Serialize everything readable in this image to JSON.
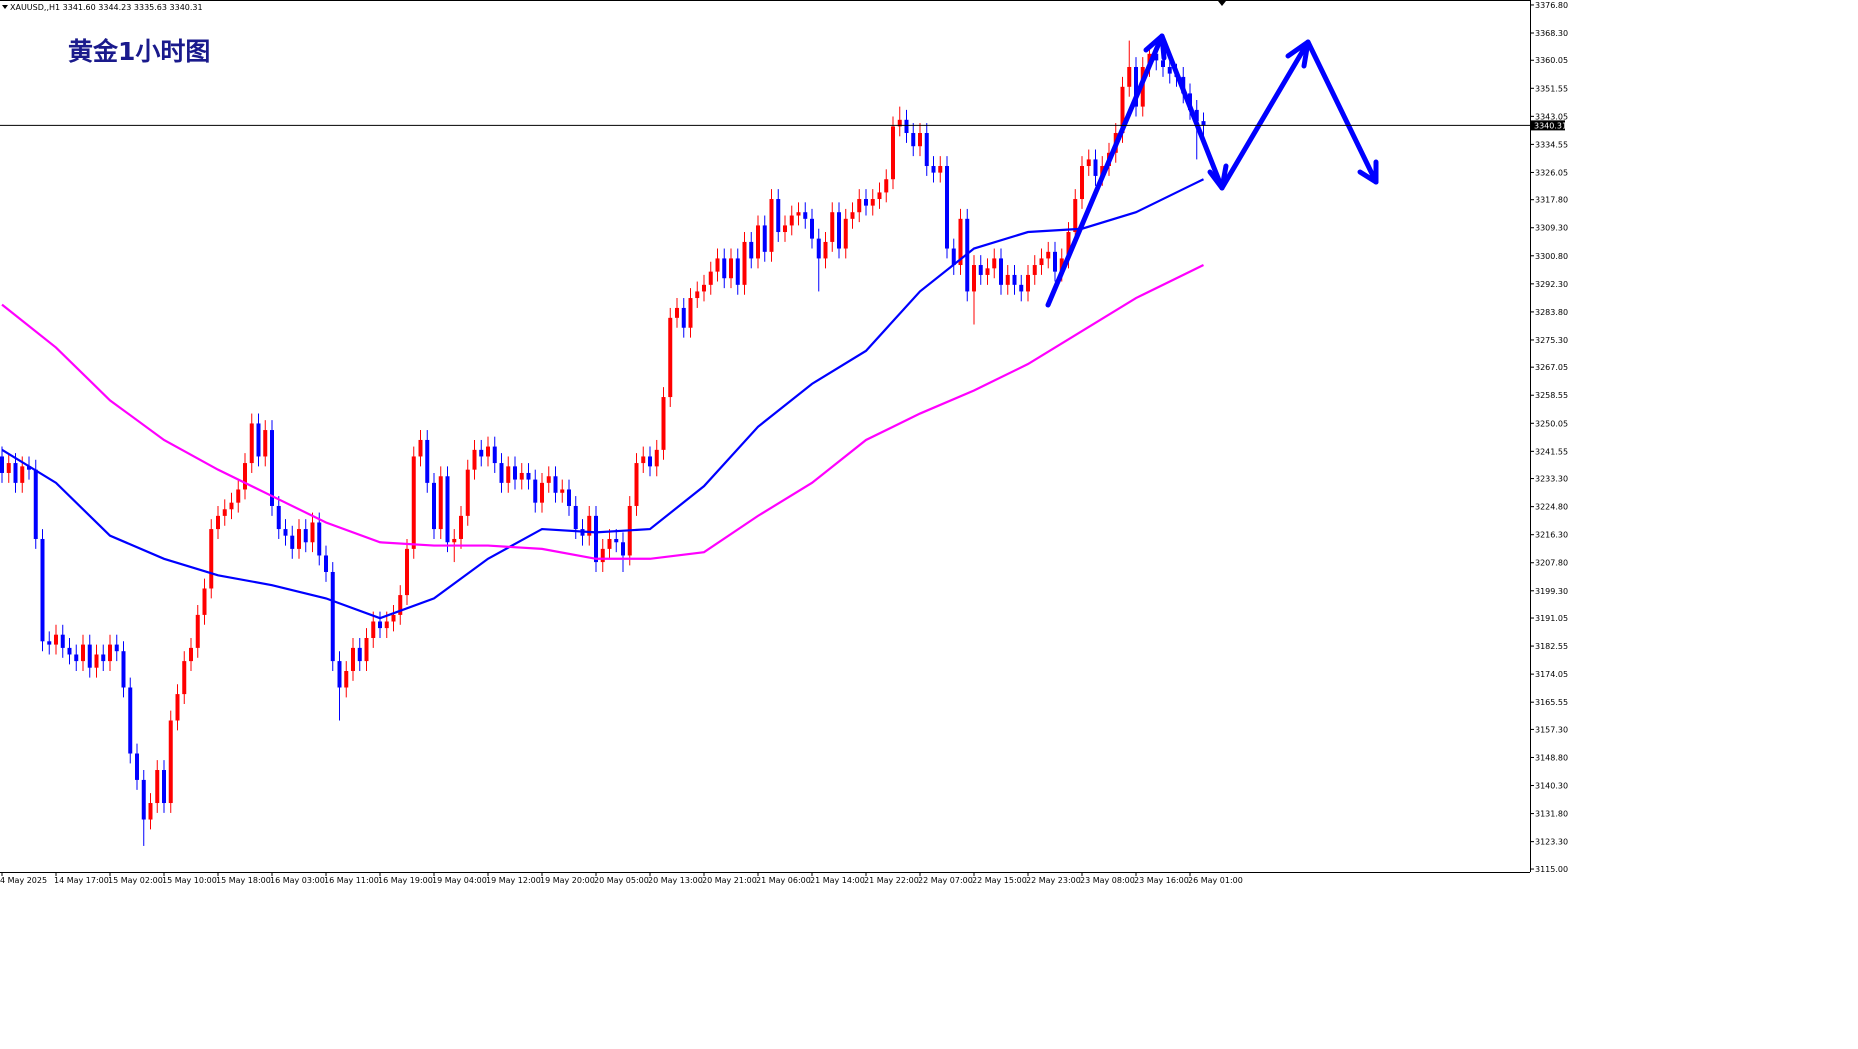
{
  "chart_data": {
    "type": "candlestick",
    "title": "黄金1小时图",
    "symbol_info": "XAUUSD,,H1  3341.60 3344.23 3335.63 3340.31",
    "up_color": "#ff0000",
    "down_color": "#0000ff",
    "ylim": [
      3114.1,
      3378.3
    ],
    "yticks": [
      {
        "value": 3376.8,
        "label": "3376.80"
      },
      {
        "value": 3368.3,
        "label": "3368.30"
      },
      {
        "value": 3360.05,
        "label": "3360.05"
      },
      {
        "value": 3351.55,
        "label": "3351.55"
      },
      {
        "value": 3343.05,
        "label": "3343.05"
      },
      {
        "value": 3334.55,
        "label": "3334.55"
      },
      {
        "value": 3326.05,
        "label": "3326.05"
      },
      {
        "value": 3317.8,
        "label": "3317.80"
      },
      {
        "value": 3309.3,
        "label": "3309.30"
      },
      {
        "value": 3300.8,
        "label": "3300.80"
      },
      {
        "value": 3292.3,
        "label": "3292.30"
      },
      {
        "value": 3283.8,
        "label": "3283.80"
      },
      {
        "value": 3275.3,
        "label": "3275.30"
      },
      {
        "value": 3267.05,
        "label": "3267.05"
      },
      {
        "value": 3258.55,
        "label": "3258.55"
      },
      {
        "value": 3250.05,
        "label": "3250.05"
      },
      {
        "value": 3241.55,
        "label": "3241.55"
      },
      {
        "value": 3233.3,
        "label": "3233.30"
      },
      {
        "value": 3224.8,
        "label": "3224.80"
      },
      {
        "value": 3216.3,
        "label": "3216.30"
      },
      {
        "value": 3207.8,
        "label": "3207.80"
      },
      {
        "value": 3199.3,
        "label": "3199.30"
      },
      {
        "value": 3191.05,
        "label": "3191.05"
      },
      {
        "value": 3182.55,
        "label": "3182.55"
      },
      {
        "value": 3174.05,
        "label": "3174.05"
      },
      {
        "value": 3165.55,
        "label": "3165.55"
      },
      {
        "value": 3157.3,
        "label": "3157.30"
      },
      {
        "value": 3148.8,
        "label": "3148.80"
      },
      {
        "value": 3140.3,
        "label": "3140.30"
      },
      {
        "value": 3131.8,
        "label": "3131.80"
      },
      {
        "value": 3123.3,
        "label": "3123.30"
      },
      {
        "value": 3115,
        "label": "3115.00"
      }
    ],
    "categories": [
      "4 May 2025",
      "14 May 17:00",
      "15 May 02:00",
      "15 May 10:00",
      "15 May 18:00",
      "16 May 03:00",
      "16 May 11:00",
      "16 May 19:00",
      "19 May 04:00",
      "19 May 12:00",
      "19 May 20:00",
      "20 May 05:00",
      "20 May 13:00",
      "20 May 21:00",
      "21 May 06:00",
      "21 May 14:00",
      "21 May 22:00",
      "22 May 07:00",
      "22 May 15:00",
      "22 May 23:00",
      "23 May 08:00",
      "23 May 16:00",
      "26 May 01:00"
    ],
    "candles": [
      [
        3240,
        3243,
        3232,
        3235
      ],
      [
        3235,
        3241,
        3232,
        3238
      ],
      [
        3238,
        3241,
        3229,
        3232
      ],
      [
        3232,
        3240,
        3229,
        3237
      ],
      [
        3237,
        3240,
        3233,
        3236
      ],
      [
        3236,
        3239,
        3212,
        3215
      ],
      [
        3215,
        3218,
        3181,
        3184
      ],
      [
        3184,
        3187,
        3180,
        3183
      ],
      [
        3183,
        3189,
        3180,
        3186
      ],
      [
        3186,
        3189,
        3179,
        3182
      ],
      [
        3182,
        3185,
        3177,
        3180
      ],
      [
        3180,
        3183,
        3175,
        3178
      ],
      [
        3178,
        3186,
        3175,
        3183
      ],
      [
        3183,
        3186,
        3173,
        3176
      ],
      [
        3176,
        3183,
        3173,
        3180
      ],
      [
        3180,
        3183,
        3175,
        3178
      ],
      [
        3178,
        3186,
        3175,
        3183
      ],
      [
        3183,
        3186,
        3178,
        3181
      ],
      [
        3181,
        3184,
        3167,
        3170
      ],
      [
        3170,
        3173,
        3147,
        3150
      ],
      [
        3150,
        3153,
        3139,
        3142
      ],
      [
        3142,
        3145,
        3122,
        3130
      ],
      [
        3130,
        3138,
        3127,
        3135
      ],
      [
        3135,
        3148,
        3132,
        3145
      ],
      [
        3145,
        3148,
        3132,
        3135
      ],
      [
        3135,
        3163,
        3132,
        3160
      ],
      [
        3160,
        3171,
        3157,
        3168
      ],
      [
        3168,
        3181,
        3165,
        3178
      ],
      [
        3178,
        3185,
        3175,
        3182
      ],
      [
        3182,
        3195,
        3179,
        3192
      ],
      [
        3192,
        3203,
        3189,
        3200
      ],
      [
        3200,
        3221,
        3197,
        3218
      ],
      [
        3218,
        3225,
        3215,
        3222
      ],
      [
        3222,
        3227,
        3219,
        3224
      ],
      [
        3224,
        3229,
        3221,
        3226
      ],
      [
        3226,
        3233,
        3223,
        3230
      ],
      [
        3230,
        3241,
        3227,
        3238
      ],
      [
        3238,
        3253,
        3235,
        3250
      ],
      [
        3250,
        3253,
        3237,
        3240
      ],
      [
        3240,
        3251,
        3237,
        3248
      ],
      [
        3248,
        3251,
        3222,
        3225
      ],
      [
        3225,
        3228,
        3215,
        3218
      ],
      [
        3218,
        3221,
        3213,
        3216
      ],
      [
        3216,
        3219,
        3209,
        3212
      ],
      [
        3212,
        3221,
        3209,
        3218
      ],
      [
        3218,
        3221,
        3211,
        3214
      ],
      [
        3214,
        3223,
        3211,
        3220
      ],
      [
        3220,
        3223,
        3207,
        3210
      ],
      [
        3210,
        3213,
        3202,
        3205
      ],
      [
        3205,
        3208,
        3175,
        3178
      ],
      [
        3178,
        3181,
        3160,
        3170
      ],
      [
        3170,
        3178,
        3167,
        3175
      ],
      [
        3175,
        3185,
        3172,
        3182
      ],
      [
        3182,
        3185,
        3175,
        3178
      ],
      [
        3178,
        3188,
        3175,
        3185
      ],
      [
        3185,
        3193,
        3182,
        3190
      ],
      [
        3190,
        3193,
        3185,
        3188
      ],
      [
        3188,
        3193,
        3185,
        3190
      ],
      [
        3190,
        3195,
        3187,
        3192
      ],
      [
        3192,
        3201,
        3189,
        3198
      ],
      [
        3198,
        3215,
        3195,
        3212
      ],
      [
        3212,
        3243,
        3209,
        3240
      ],
      [
        3240,
        3248,
        3237,
        3245
      ],
      [
        3245,
        3248,
        3229,
        3232
      ],
      [
        3232,
        3235,
        3215,
        3218
      ],
      [
        3218,
        3237,
        3215,
        3234
      ],
      [
        3234,
        3237,
        3211,
        3214
      ],
      [
        3214,
        3218,
        3208,
        3215
      ],
      [
        3215,
        3225,
        3212,
        3222
      ],
      [
        3222,
        3239,
        3219,
        3236
      ],
      [
        3236,
        3245,
        3233,
        3242
      ],
      [
        3242,
        3245,
        3237,
        3240
      ],
      [
        3240,
        3246,
        3237,
        3243
      ],
      [
        3243,
        3246,
        3235,
        3238
      ],
      [
        3238,
        3241,
        3229,
        3232
      ],
      [
        3232,
        3240,
        3229,
        3237
      ],
      [
        3237,
        3240,
        3230,
        3233
      ],
      [
        3233,
        3238,
        3230,
        3235
      ],
      [
        3235,
        3238,
        3230,
        3233
      ],
      [
        3233,
        3236,
        3223,
        3226
      ],
      [
        3226,
        3235,
        3223,
        3232
      ],
      [
        3232,
        3237,
        3229,
        3234
      ],
      [
        3234,
        3237,
        3226,
        3229
      ],
      [
        3229,
        3233,
        3226,
        3230
      ],
      [
        3230,
        3233,
        3222,
        3225
      ],
      [
        3225,
        3228,
        3215,
        3218
      ],
      [
        3218,
        3221,
        3213,
        3216
      ],
      [
        3216,
        3225,
        3213,
        3222
      ],
      [
        3222,
        3225,
        3205,
        3208
      ],
      [
        3208,
        3215,
        3205,
        3212
      ],
      [
        3212,
        3218,
        3209,
        3215
      ],
      [
        3215,
        3218,
        3211,
        3214
      ],
      [
        3214,
        3217,
        3205,
        3210
      ],
      [
        3210,
        3228,
        3207,
        3225
      ],
      [
        3225,
        3241,
        3222,
        3238
      ],
      [
        3238,
        3243,
        3235,
        3240
      ],
      [
        3240,
        3243,
        3234,
        3237
      ],
      [
        3237,
        3245,
        3234,
        3242
      ],
      [
        3242,
        3261,
        3239,
        3258
      ],
      [
        3258,
        3285,
        3255,
        3282
      ],
      [
        3282,
        3288,
        3279,
        3285
      ],
      [
        3285,
        3288,
        3276,
        3279
      ],
      [
        3279,
        3291,
        3276,
        3288
      ],
      [
        3288,
        3293,
        3285,
        3290
      ],
      [
        3290,
        3295,
        3287,
        3292
      ],
      [
        3292,
        3299,
        3289,
        3296
      ],
      [
        3296,
        3303,
        3293,
        3300
      ],
      [
        3300,
        3303,
        3291,
        3294
      ],
      [
        3294,
        3303,
        3291,
        3300
      ],
      [
        3300,
        3303,
        3289,
        3292
      ],
      [
        3292,
        3308,
        3289,
        3305
      ],
      [
        3305,
        3308,
        3297,
        3300
      ],
      [
        3300,
        3313,
        3297,
        3310
      ],
      [
        3310,
        3313,
        3299,
        3302
      ],
      [
        3302,
        3321,
        3299,
        3318
      ],
      [
        3318,
        3321,
        3305,
        3308
      ],
      [
        3308,
        3313,
        3305,
        3310
      ],
      [
        3310,
        3316,
        3307,
        3313
      ],
      [
        3313,
        3317,
        3310,
        3314
      ],
      [
        3314,
        3317,
        3309,
        3312
      ],
      [
        3312,
        3315,
        3303,
        3306
      ],
      [
        3306,
        3309,
        3290,
        3300
      ],
      [
        3300,
        3308,
        3297,
        3305
      ],
      [
        3305,
        3317,
        3302,
        3314
      ],
      [
        3314,
        3317,
        3300,
        3303
      ],
      [
        3303,
        3315,
        3300,
        3312
      ],
      [
        3312,
        3317,
        3309,
        3314
      ],
      [
        3314,
        3321,
        3311,
        3318
      ],
      [
        3318,
        3321,
        3313,
        3316
      ],
      [
        3316,
        3321,
        3313,
        3318
      ],
      [
        3318,
        3323,
        3315,
        3320
      ],
      [
        3320,
        3327,
        3317,
        3324
      ],
      [
        3324,
        3343,
        3321,
        3340
      ],
      [
        3340,
        3346,
        3337,
        3342
      ],
      [
        3342,
        3345,
        3335,
        3338
      ],
      [
        3338,
        3341,
        3331,
        3334
      ],
      [
        3334,
        3341,
        3331,
        3338
      ],
      [
        3338,
        3341,
        3325,
        3328
      ],
      [
        3328,
        3331,
        3323,
        3326
      ],
      [
        3326,
        3331,
        3323,
        3328
      ],
      [
        3328,
        3331,
        3300,
        3303
      ],
      [
        3303,
        3306,
        3295,
        3298
      ],
      [
        3298,
        3315,
        3295,
        3312
      ],
      [
        3312,
        3315,
        3287,
        3290
      ],
      [
        3290,
        3301,
        3280,
        3298
      ],
      [
        3298,
        3301,
        3292,
        3295
      ],
      [
        3295,
        3300,
        3292,
        3297
      ],
      [
        3297,
        3303,
        3294,
        3300
      ],
      [
        3300,
        3303,
        3289,
        3292
      ],
      [
        3292,
        3298,
        3289,
        3295
      ],
      [
        3295,
        3298,
        3289,
        3292
      ],
      [
        3292,
        3295,
        3287,
        3290
      ],
      [
        3290,
        3298,
        3287,
        3295
      ],
      [
        3295,
        3301,
        3292,
        3298
      ],
      [
        3298,
        3303,
        3295,
        3300
      ],
      [
        3300,
        3305,
        3297,
        3302
      ],
      [
        3302,
        3305,
        3293,
        3296
      ],
      [
        3296,
        3303,
        3293,
        3300
      ],
      [
        3300,
        3311,
        3297,
        3308
      ],
      [
        3308,
        3321,
        3305,
        3318
      ],
      [
        3318,
        3331,
        3315,
        3328
      ],
      [
        3328,
        3333,
        3325,
        3330
      ],
      [
        3330,
        3333,
        3322,
        3325
      ],
      [
        3325,
        3331,
        3322,
        3328
      ],
      [
        3328,
        3335,
        3325,
        3332
      ],
      [
        3332,
        3341,
        3329,
        3338
      ],
      [
        3338,
        3355,
        3335,
        3352
      ],
      [
        3352,
        3366,
        3349,
        3358
      ],
      [
        3358,
        3361,
        3343,
        3346
      ],
      [
        3346,
        3361,
        3343,
        3358
      ],
      [
        3358,
        3365,
        3355,
        3362
      ],
      [
        3362,
        3365,
        3357,
        3360
      ],
      [
        3360,
        3363,
        3355,
        3358
      ],
      [
        3358,
        3361,
        3353,
        3356
      ],
      [
        3356,
        3359,
        3352,
        3355
      ],
      [
        3355,
        3358,
        3347,
        3350
      ],
      [
        3350,
        3353,
        3342,
        3345
      ],
      [
        3345,
        3348,
        3330,
        3341.6
      ],
      [
        3341.6,
        3344.23,
        3335.63,
        3340.31
      ]
    ],
    "series": [
      {
        "color": "#0000ff",
        "x": [
          0,
          8,
          16,
          24,
          32,
          40,
          48,
          56,
          64,
          72,
          80,
          88,
          96,
          104,
          112,
          120,
          128,
          136,
          144,
          152,
          160,
          168,
          176,
          178
        ],
        "values": [
          3242,
          3232,
          3216,
          3209,
          3204,
          3201,
          3197,
          3191,
          3197,
          3209,
          3218,
          3217,
          3218,
          3231,
          3249,
          3262,
          3272,
          3290,
          3303,
          3308,
          3309,
          3314,
          3322,
          3324
        ]
      },
      {
        "color": "#ff00ff",
        "x": [
          0,
          8,
          16,
          24,
          32,
          40,
          48,
          56,
          64,
          72,
          80,
          88,
          96,
          104,
          112,
          120,
          128,
          136,
          144,
          152,
          160,
          168,
          176,
          178
        ],
        "values": [
          3286,
          3273,
          3257,
          3245,
          3236,
          3228,
          3220,
          3214,
          3213,
          3213,
          3212,
          3209,
          3209,
          3211,
          3222,
          3232,
          3245,
          3253,
          3260,
          3268,
          3278,
          3288,
          3296,
          3298
        ]
      }
    ]
  }
}
